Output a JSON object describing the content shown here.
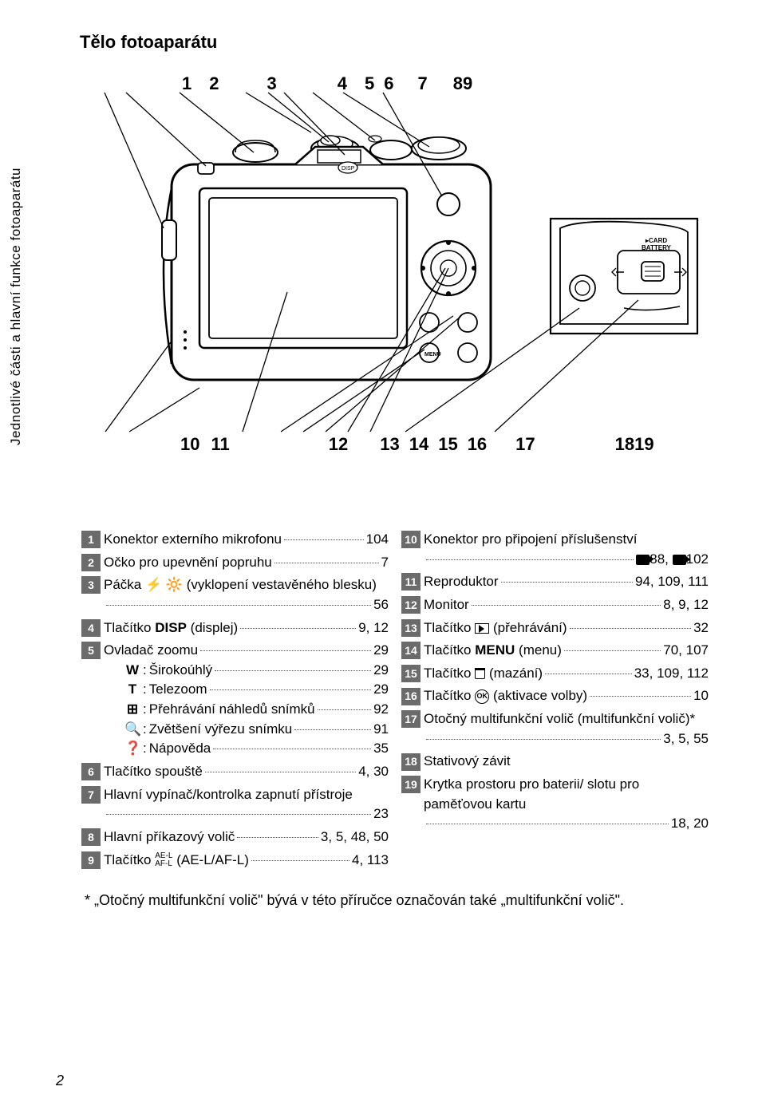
{
  "page_number": "2",
  "title": "Tělo fotoaparátu",
  "side_label": "Jednotlivé části a hlavní funkce fotoaparátu",
  "footnote": "* „Otočný multifunkční volič\" bývá v této příručce označován také „multifunkční volič\".",
  "diagram": {
    "top_callouts": [
      "1",
      "2",
      "3",
      "4",
      "5",
      "6",
      "7",
      "8",
      "9"
    ],
    "mid_callouts": [
      "10",
      "11",
      "12",
      "13",
      "14",
      "15",
      "16",
      "17",
      "18",
      "19"
    ],
    "battery_label": "CARD BATTERY"
  },
  "left_items": [
    {
      "num": "1",
      "rows": [
        {
          "label": "Konektor externího mikrofonu",
          "page": "104"
        }
      ]
    },
    {
      "num": "2",
      "rows": [
        {
          "label": "Očko pro upevnění popruhu",
          "page": "7"
        }
      ]
    },
    {
      "num": "3",
      "rows": [
        {
          "label": "Páčka ⚡ 🔆 (vyklopení vestavěného blesku)",
          "page": "56",
          "multiline": true
        }
      ]
    },
    {
      "num": "4",
      "rows": [
        {
          "label_pre": "Tlačítko ",
          "label_bold": "DISP",
          "label_post": " (displej)",
          "page": "9, 12"
        }
      ]
    },
    {
      "num": "5",
      "rows": [
        {
          "label": "Ovladač zoomu",
          "page": "29"
        },
        {
          "sub": true,
          "glyph": "W",
          "text": "Širokoúhlý",
          "page": "29"
        },
        {
          "sub": true,
          "glyph": "T",
          "text": "Telezoom",
          "page": "29"
        },
        {
          "sub": true,
          "glyph": "⊞",
          "text": "Přehrávání náhledů snímků",
          "page": "92"
        },
        {
          "sub": true,
          "glyph": "🔍",
          "text": "Zvětšení výřezu snímku",
          "page": "91"
        },
        {
          "sub": true,
          "glyph": "❓",
          "text": "Nápověda",
          "page": "35"
        }
      ]
    },
    {
      "num": "6",
      "rows": [
        {
          "label": "Tlačítko spouště",
          "page": "4, 30"
        }
      ]
    },
    {
      "num": "7",
      "rows": [
        {
          "label": "Hlavní vypínač/kontrolka zapnutí přístroje",
          "page": "23",
          "multiline": true
        }
      ]
    },
    {
      "num": "8",
      "rows": [
        {
          "label": "Hlavní příkazový volič",
          "page": "3, 5, 48, 50"
        }
      ]
    },
    {
      "num": "9",
      "rows": [
        {
          "label_pre": "Tlačítko ",
          "label_small": "AE-L AF-L",
          "label_post": " (AE-L/AF-L)",
          "page": "4, 113"
        }
      ]
    }
  ],
  "right_items": [
    {
      "num": "10",
      "rows": [
        {
          "label": "Konektor pro připojení příslušenství",
          "page_ref": true,
          "page": "88, ",
          "page2_ref": true,
          "page2": "102",
          "multiline": true
        }
      ]
    },
    {
      "num": "11",
      "rows": [
        {
          "label": "Reproduktor",
          "page": "94, 109, 111"
        }
      ]
    },
    {
      "num": "12",
      "rows": [
        {
          "label": "Monitor",
          "page": "8, 9, 12"
        }
      ]
    },
    {
      "num": "13",
      "rows": [
        {
          "label_pre": "Tlačítko ",
          "icon": "play",
          "label_post": " (přehrávání)",
          "page": "32"
        }
      ]
    },
    {
      "num": "14",
      "rows": [
        {
          "label_pre": "Tlačítko ",
          "label_bold": "MENU",
          "label_post": " (menu)",
          "page": "70, 107"
        }
      ]
    },
    {
      "num": "15",
      "rows": [
        {
          "label_pre": "Tlačítko ",
          "icon": "trash",
          "label_post": " (mazání)",
          "page": "33, 109, 112"
        }
      ]
    },
    {
      "num": "16",
      "rows": [
        {
          "label_pre": "Tlačítko ",
          "icon": "ok",
          "label_post": " (aktivace volby)",
          "page": "10"
        }
      ]
    },
    {
      "num": "17",
      "rows": [
        {
          "label": "Otočný multifunkční volič (multifunkční volič)*",
          "page": "3, 5, 55",
          "multiline": true
        }
      ]
    },
    {
      "num": "18",
      "rows": [
        {
          "label": "Stativový závit",
          "page": ""
        }
      ]
    },
    {
      "num": "19",
      "rows": [
        {
          "label": "Krytka prostoru pro baterii/ slotu pro paměťovou kartu",
          "page": "18, 20",
          "multiline": true
        }
      ]
    }
  ]
}
